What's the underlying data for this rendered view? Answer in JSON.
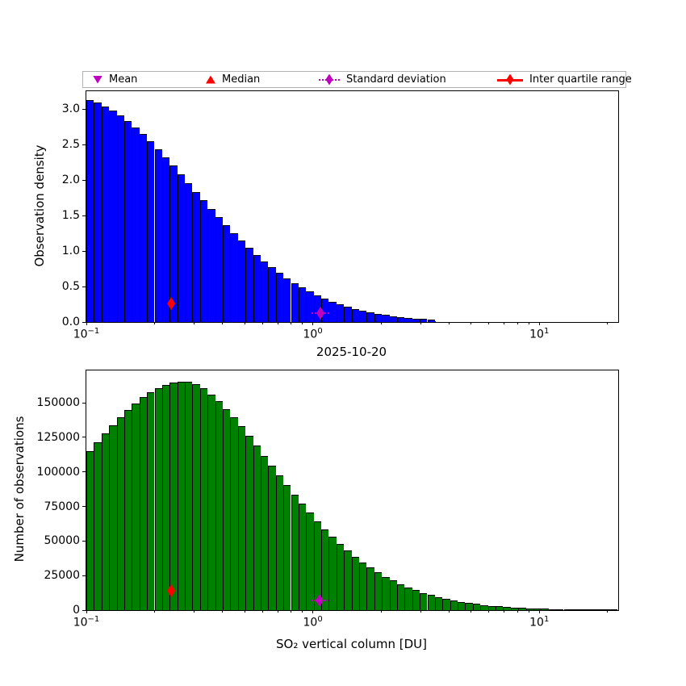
{
  "figure": {
    "background": "#ffffff",
    "legend": {
      "position": "top",
      "border_color": "#b3b3b3",
      "items": [
        {
          "label": "Mean",
          "marker": "triangle-down",
          "color": "#BF00BF",
          "line": "none"
        },
        {
          "label": "Median",
          "marker": "triangle-up",
          "color": "#FF0000",
          "line": "none"
        },
        {
          "label": "Standard deviation",
          "marker": "thin-diamond",
          "color": "#BF00BF",
          "line": "dotted"
        },
        {
          "label": "Inter quartile range",
          "marker": "thin-diamond",
          "color": "#FF0000",
          "line": "solid"
        }
      ]
    }
  },
  "chart_data": [
    {
      "type": "bar",
      "subtype": "histogram",
      "xlabel": "2025-10-20",
      "ylabel": "Observation density",
      "xscale": "log",
      "xlim": [
        0.1,
        22.3
      ],
      "ylim": [
        0,
        3.254
      ],
      "grid": false,
      "bar_color": "#0000FF",
      "bar_edge_color": "#000000",
      "x_major_ticks": [
        {
          "value": 0.1,
          "exp": "−1"
        },
        {
          "value": 1,
          "exp": "0"
        },
        {
          "value": 10,
          "exp": "1"
        }
      ],
      "x_minor_ticks": [
        0.2,
        0.3,
        0.4,
        0.5,
        0.6,
        0.7,
        0.8,
        0.9,
        2,
        3,
        4,
        5,
        6,
        7,
        8,
        9,
        20
      ],
      "y_ticks": [
        0.0,
        0.5,
        1.0,
        1.5,
        2.0,
        2.5,
        3.0
      ],
      "y_tick_labels": [
        "0.0",
        "0.5",
        "1.0",
        "1.5",
        "2.0",
        "2.5",
        "3.0"
      ],
      "bins": {
        "log10_start": -1,
        "log10_step": 0.033457,
        "count": 70
      },
      "values": [
        3.126,
        3.091,
        3.043,
        2.984,
        2.914,
        2.834,
        2.746,
        2.649,
        2.545,
        2.435,
        2.321,
        2.202,
        2.082,
        1.96,
        1.837,
        1.715,
        1.595,
        1.477,
        1.362,
        1.251,
        1.145,
        1.043,
        0.946,
        0.855,
        0.769,
        0.69,
        0.616,
        0.547,
        0.485,
        0.427,
        0.375,
        0.328,
        0.286,
        0.248,
        0.214,
        0.184,
        0.158,
        0.135,
        0.115,
        0.097,
        0.082,
        0.069,
        0.057,
        0.048,
        0.04,
        0.033,
        0,
        0,
        0,
        0,
        0,
        0,
        0,
        0,
        0,
        0,
        0,
        0,
        0,
        0,
        0,
        0,
        0,
        0,
        0,
        0,
        0,
        0,
        0,
        0
      ],
      "markers": [
        {
          "name": "inter-quartile-range",
          "shape": "thin-diamond",
          "color": "#FF0000",
          "x": 0.237,
          "y": 0.26,
          "cap_line": "none"
        },
        {
          "name": "standard-deviation",
          "shape": "thin-diamond",
          "color": "#BF00BF",
          "x": 1.08,
          "y": 0.125,
          "cap_line": "dotted"
        }
      ]
    },
    {
      "type": "bar",
      "subtype": "histogram",
      "xlabel": "SO₂ vertical column [DU]",
      "ylabel": "Number of observations",
      "xscale": "log",
      "xlim": [
        0.1,
        22.3
      ],
      "ylim": [
        0,
        173430
      ],
      "grid": false,
      "bar_color": "#008000",
      "bar_edge_color": "#000000",
      "x_major_ticks": [
        {
          "value": 0.1,
          "exp": "−1"
        },
        {
          "value": 1,
          "exp": "0"
        },
        {
          "value": 10,
          "exp": "1"
        }
      ],
      "x_minor_ticks": [
        0.2,
        0.3,
        0.4,
        0.5,
        0.6,
        0.7,
        0.8,
        0.9,
        2,
        3,
        4,
        5,
        6,
        7,
        8,
        9,
        20
      ],
      "y_ticks": [
        0,
        25000,
        50000,
        75000,
        100000,
        125000,
        150000
      ],
      "y_tick_labels": [
        "0",
        "25000",
        "50000",
        "75000",
        "100000",
        "125000",
        "150000"
      ],
      "bins": {
        "log10_start": -1,
        "log10_step": 0.033457,
        "count": 70
      },
      "values": [
        114800,
        121400,
        127700,
        133800,
        139500,
        144800,
        149600,
        153900,
        157500,
        160500,
        162900,
        164500,
        165300,
        165300,
        163500,
        160400,
        156200,
        151300,
        145700,
        139500,
        132900,
        126000,
        119000,
        111800,
        104600,
        97400,
        90400,
        83500,
        76900,
        70500,
        64400,
        58600,
        53100,
        48000,
        43200,
        38700,
        34600,
        30800,
        27400,
        24200,
        21400,
        18800,
        16400,
        14400,
        12500,
        10900,
        9400,
        8100,
        7000,
        6000,
        5100,
        4400,
        3700,
        3100,
        2700,
        2200,
        1900,
        1600,
        1300,
        1100,
        900,
        760,
        630,
        520,
        430,
        350,
        290,
        240,
        190,
        160
      ],
      "markers": [
        {
          "name": "inter-quartile-range",
          "shape": "thin-diamond",
          "color": "#FF0000",
          "x": 0.237,
          "y": 14000,
          "cap_line": "none"
        },
        {
          "name": "standard-deviation",
          "shape": "thin-diamond",
          "color": "#BF00BF",
          "x": 1.07,
          "y": 7000,
          "cap_line": "dotted"
        }
      ]
    }
  ]
}
